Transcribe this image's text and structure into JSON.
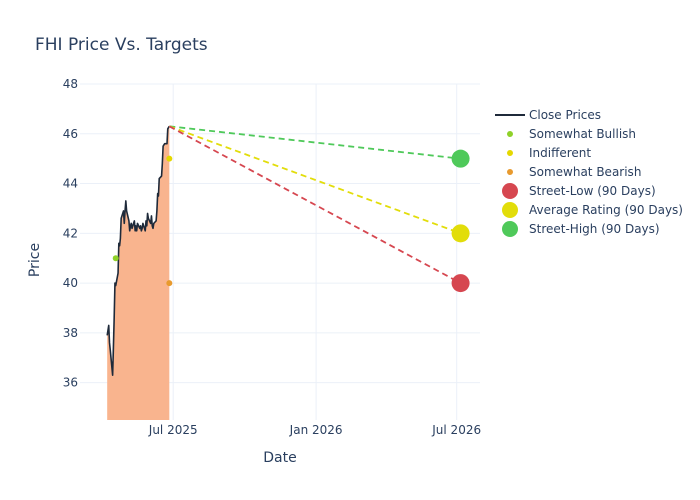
{
  "chart_data": {
    "type": "line",
    "title": "FHI Price Vs. Targets",
    "xlabel": "Date",
    "ylabel": "Price",
    "grid": true,
    "legend_position": "right",
    "x_range": [
      "2025-03-03",
      "2026-07-31"
    ],
    "y_range": [
      34.5,
      48
    ],
    "x_ticks": [
      {
        "date": "2025-07-01",
        "label": "Jul 2025"
      },
      {
        "date": "2026-01-01",
        "label": "Jan 2026"
      },
      {
        "date": "2026-07-01",
        "label": "Jul 2026"
      }
    ],
    "y_ticks": [
      36,
      38,
      40,
      42,
      44,
      46,
      48
    ],
    "close_prices": {
      "name": "Close Prices",
      "color": "#1f2a3a",
      "fill_color": "#f9b48e",
      "points": [
        [
          "2025-04-07",
          37.9
        ],
        [
          "2025-04-08",
          38.1
        ],
        [
          "2025-04-09",
          38.3
        ],
        [
          "2025-04-10",
          37.6
        ],
        [
          "2025-04-11",
          37.3
        ],
        [
          "2025-04-14",
          36.3
        ],
        [
          "2025-04-15",
          37.4
        ],
        [
          "2025-04-16",
          38.6
        ],
        [
          "2025-04-17",
          40.0
        ],
        [
          "2025-04-18",
          39.9
        ],
        [
          "2025-04-21",
          40.4
        ],
        [
          "2025-04-22",
          41.6
        ],
        [
          "2025-04-23",
          41.5
        ],
        [
          "2025-04-24",
          41.8
        ],
        [
          "2025-04-25",
          42.6
        ],
        [
          "2025-04-28",
          42.9
        ],
        [
          "2025-04-29",
          42.4
        ],
        [
          "2025-04-30",
          42.9
        ],
        [
          "2025-05-01",
          43.3
        ],
        [
          "2025-05-02",
          42.9
        ],
        [
          "2025-05-05",
          42.5
        ],
        [
          "2025-05-06",
          42.1
        ],
        [
          "2025-05-07",
          42.3
        ],
        [
          "2025-05-08",
          42.4
        ],
        [
          "2025-05-09",
          42.2
        ],
        [
          "2025-05-12",
          42.5
        ],
        [
          "2025-05-13",
          42.1
        ],
        [
          "2025-05-14",
          42.3
        ],
        [
          "2025-05-15",
          42.1
        ],
        [
          "2025-05-16",
          42.4
        ],
        [
          "2025-05-19",
          42.2
        ],
        [
          "2025-05-20",
          42.3
        ],
        [
          "2025-05-21",
          42.1
        ],
        [
          "2025-05-22",
          42.2
        ],
        [
          "2025-05-23",
          42.4
        ],
        [
          "2025-05-26",
          42.1
        ],
        [
          "2025-05-27",
          42.5
        ],
        [
          "2025-05-28",
          42.3
        ],
        [
          "2025-05-29",
          42.8
        ],
        [
          "2025-05-30",
          42.6
        ],
        [
          "2025-06-02",
          42.4
        ],
        [
          "2025-06-03",
          42.7
        ],
        [
          "2025-06-04",
          42.3
        ],
        [
          "2025-06-05",
          42.2
        ],
        [
          "2025-06-06",
          42.4
        ],
        [
          "2025-06-09",
          42.5
        ],
        [
          "2025-06-10",
          42.9
        ],
        [
          "2025-06-11",
          43.6
        ],
        [
          "2025-06-12",
          43.5
        ],
        [
          "2025-06-13",
          44.2
        ],
        [
          "2025-06-16",
          44.3
        ],
        [
          "2025-06-17",
          44.8
        ],
        [
          "2025-06-18",
          45.5
        ],
        [
          "2025-06-20",
          45.6
        ],
        [
          "2025-06-23",
          45.6
        ],
        [
          "2025-06-24",
          46.2
        ],
        [
          "2025-06-26",
          46.3
        ]
      ]
    },
    "ratings": [
      {
        "name": "Somewhat Bullish",
        "color": "#8fd129",
        "date": "2025-04-18",
        "value": 41
      },
      {
        "name": "Indifferent",
        "color": "#e5d800",
        "date": "2025-06-26",
        "value": 45
      },
      {
        "name": "Somewhat Bearish",
        "color": "#e89a2e",
        "date": "2025-06-26",
        "value": 40
      }
    ],
    "targets": {
      "start_date": "2025-06-26",
      "start_value": 46.3,
      "end_date": "2026-07-06",
      "series": [
        {
          "name": "Street-Low (90 Days)",
          "color": "#d64750",
          "value": 40
        },
        {
          "name": "Average Rating (90 Days)",
          "color": "#e2dd0a",
          "value": 42
        },
        {
          "name": "Street-High (90 Days)",
          "color": "#4fc95a",
          "value": 45
        }
      ]
    }
  }
}
